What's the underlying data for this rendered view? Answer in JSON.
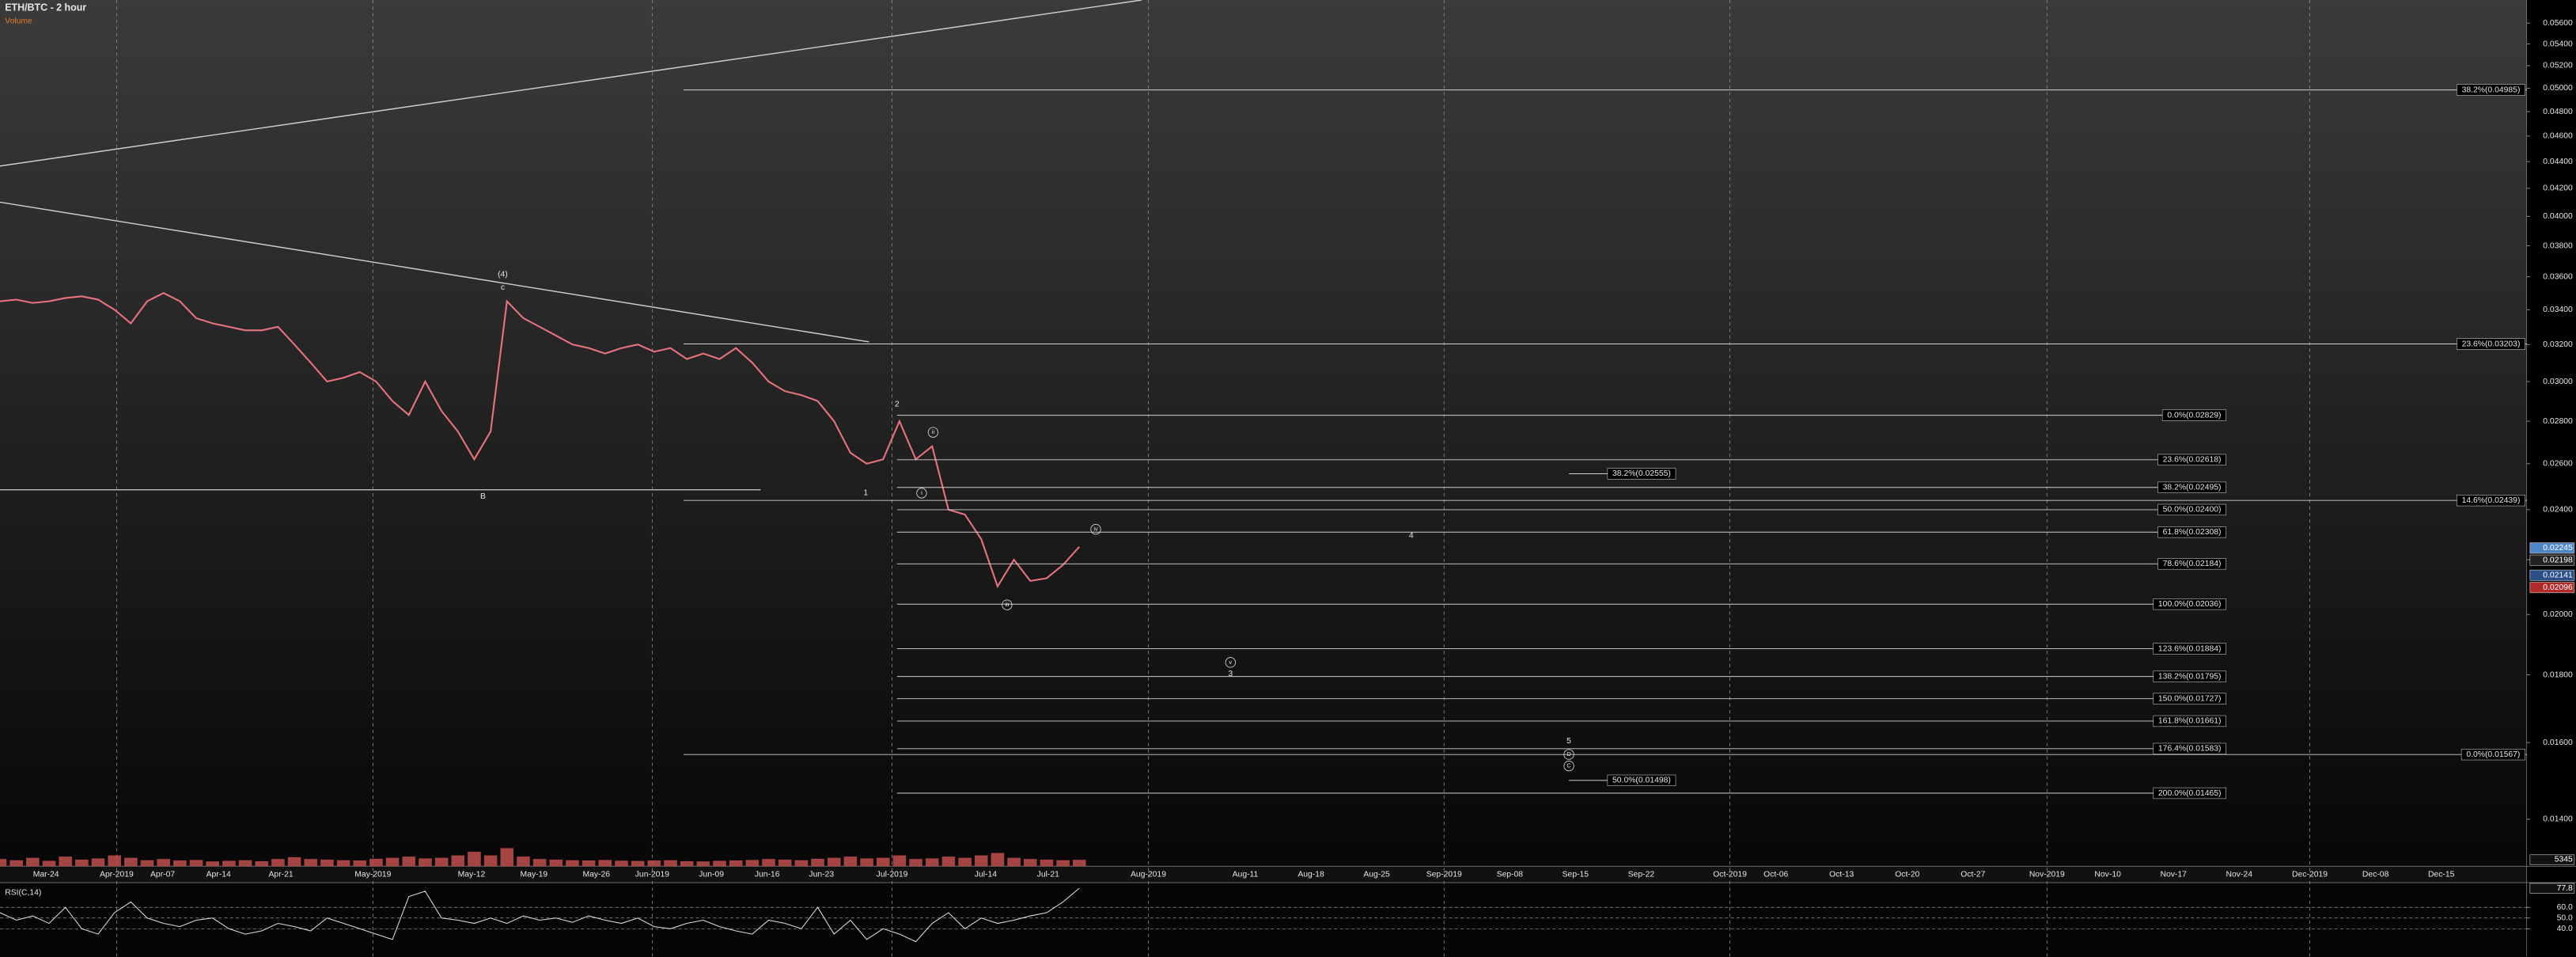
{
  "chart_data": [
    {
      "type": "line",
      "title": "ETH/BTC - 2 hour",
      "log_scale": true,
      "ylim": [
        0.0129,
        0.0583
      ],
      "yticks": [
        {
          "value": 0.014,
          "label": "0.01400"
        },
        {
          "value": 0.016,
          "label": "0.01600"
        },
        {
          "value": 0.018,
          "label": "0.01800"
        },
        {
          "value": 0.02,
          "label": "0.02000"
        },
        {
          "value": 0.022,
          "label": "0.02200"
        },
        {
          "value": 0.024,
          "label": "0.02400"
        },
        {
          "value": 0.026,
          "label": "0.02600"
        },
        {
          "value": 0.028,
          "label": "0.02800"
        },
        {
          "value": 0.03,
          "label": "0.03000"
        },
        {
          "value": 0.032,
          "label": "0.03200"
        },
        {
          "value": 0.034,
          "label": "0.03400"
        },
        {
          "value": 0.036,
          "label": "0.03600"
        },
        {
          "value": 0.038,
          "label": "0.03800"
        },
        {
          "value": 0.04,
          "label": "0.04000"
        },
        {
          "value": 0.042,
          "label": "0.04200"
        },
        {
          "value": 0.044,
          "label": "0.04400"
        },
        {
          "value": 0.046,
          "label": "0.04600"
        },
        {
          "value": 0.048,
          "label": "0.04800"
        },
        {
          "value": 0.05,
          "label": "0.05000"
        },
        {
          "value": 0.052,
          "label": "0.05200"
        },
        {
          "value": 0.054,
          "label": "0.05400"
        },
        {
          "value": 0.056,
          "label": "0.05600"
        }
      ],
      "x_labels": [
        "Mar-24",
        "Apr-2019",
        "Apr-07",
        "Apr-14",
        "Apr-21",
        "May-2019",
        "May-12",
        "May-19",
        "May-26",
        "Jun-2019",
        "Jun-09",
        "Jun-16",
        "Jun-23",
        "Jul-2019",
        "Jul-14",
        "Jul-21",
        "Aug-2019",
        "Aug-11",
        "Aug-18",
        "Aug-25",
        "Sep-2019",
        "Sep-08",
        "Sep-15",
        "Sep-22",
        "Oct-2019",
        "Oct-06",
        "Oct-13",
        "Oct-20",
        "Oct-27",
        "Nov-2019",
        "Nov-10",
        "Nov-17",
        "Nov-24",
        "Dec-2019",
        "Dec-08",
        "Dec-15"
      ],
      "color": "#e8737f",
      "values": [
        0.0345,
        0.0346,
        0.0344,
        0.0345,
        0.0347,
        0.0348,
        0.0346,
        0.034,
        0.0332,
        0.0345,
        0.035,
        0.0345,
        0.0335,
        0.0332,
        0.033,
        0.0328,
        0.0328,
        0.033,
        0.032,
        0.031,
        0.03,
        0.0302,
        0.0305,
        0.03,
        0.029,
        0.0283,
        0.03,
        0.0285,
        0.0275,
        0.0262,
        0.0275,
        0.0345,
        0.0335,
        0.033,
        0.0325,
        0.032,
        0.0318,
        0.0315,
        0.0318,
        0.032,
        0.0316,
        0.0318,
        0.0312,
        0.0315,
        0.0312,
        0.0318,
        0.031,
        0.03,
        0.0295,
        0.0293,
        0.029,
        0.028,
        0.0265,
        0.026,
        0.0262,
        0.028,
        0.0262,
        0.0268,
        0.024,
        0.0238,
        0.0228,
        0.021,
        0.022,
        0.0212,
        0.0213,
        0.0218,
        0.0225
      ],
      "levels": [
        {
          "value": 0.04985,
          "label": "38.2%(0.04985)"
        },
        {
          "value": 0.03203,
          "label": "23.6%(0.03203)"
        },
        {
          "value": 0.02829,
          "label": "0.0%(0.02829)"
        },
        {
          "value": 0.02618,
          "label": "23.6%(0.02618)"
        },
        {
          "value": 0.02555,
          "label": "38.2%(0.02555)"
        },
        {
          "value": 0.02495,
          "label": "38.2%(0.02495)"
        },
        {
          "value": 0.02439,
          "label": "14.6%(0.02439)"
        },
        {
          "value": 0.024,
          "label": "50.0%(0.02400)"
        },
        {
          "value": 0.02308,
          "label": "61.8%(0.02308)"
        },
        {
          "value": 0.02184,
          "label": "78.6%(0.02184)"
        },
        {
          "value": 0.02036,
          "label": "100.0%(0.02036)"
        },
        {
          "value": 0.01884,
          "label": "123.6%(0.01884)"
        },
        {
          "value": 0.01795,
          "label": "138.2%(0.01795)"
        },
        {
          "value": 0.01727,
          "label": "150.0%(0.01727)"
        },
        {
          "value": 0.01661,
          "label": "161.8%(0.01661)"
        },
        {
          "value": 0.01583,
          "label": "176.4%(0.01583)"
        },
        {
          "value": 0.01567,
          "label": "0.0%(0.01567)"
        },
        {
          "value": 0.01498,
          "label": "50.0%(0.01498)"
        },
        {
          "value": 0.01465,
          "label": "200.0%(0.01465)"
        }
      ],
      "price_tags": [
        0.02245,
        0.02198,
        0.02141,
        0.02096
      ],
      "price_tag_colors": [
        "#4f86c6",
        "#222222",
        "#2a4f8a",
        "#b02a2a"
      ],
      "annotations": [
        "(4)",
        "c",
        "B",
        "1",
        "2",
        "i",
        "ii",
        "iii",
        "iv",
        "v",
        "3",
        "4",
        "5",
        "D",
        "C"
      ]
    },
    {
      "type": "bar",
      "title": "Volume",
      "color": "#c0504d",
      "ylim": [
        0,
        30000
      ],
      "values": [
        6000,
        5000,
        7000,
        4500,
        8000,
        5500,
        6500,
        9000,
        7000,
        5000,
        6000,
        4800,
        5200,
        4000,
        4500,
        5000,
        4200,
        6000,
        7500,
        6000,
        5500,
        5000,
        4800,
        6200,
        7000,
        8000,
        6500,
        7000,
        9000,
        12000,
        9000,
        15000,
        8000,
        6000,
        5500,
        5000,
        4800,
        5200,
        4600,
        4400,
        4800,
        5000,
        4200,
        4000,
        4500,
        4800,
        5200,
        6000,
        5500,
        5000,
        6200,
        7000,
        8000,
        6500,
        7000,
        9000,
        6000,
        6500,
        8000,
        7000,
        9000,
        11000,
        7000,
        6000,
        5500,
        5000,
        5345
      ]
    },
    {
      "type": "line",
      "title": "RSI(C,14)",
      "color": "#dddddd",
      "ylim": [
        14,
        83
      ],
      "yticks": [
        {
          "value": 40,
          "label": "40.0"
        },
        {
          "value": 50,
          "label": "50.0"
        },
        {
          "value": 60,
          "label": "60.0"
        }
      ],
      "values": [
        55,
        48,
        52,
        45,
        60,
        40,
        35,
        55,
        65,
        50,
        45,
        42,
        48,
        50,
        40,
        35,
        38,
        45,
        42,
        38,
        50,
        45,
        40,
        35,
        30,
        70,
        75,
        50,
        48,
        45,
        50,
        45,
        52,
        48,
        50,
        46,
        52,
        48,
        45,
        50,
        42,
        40,
        45,
        48,
        42,
        38,
        35,
        48,
        45,
        40,
        60,
        35,
        48,
        30,
        40,
        35,
        28,
        45,
        55,
        40,
        50,
        45,
        48,
        52,
        55,
        65,
        77.8
      ]
    }
  ]
}
